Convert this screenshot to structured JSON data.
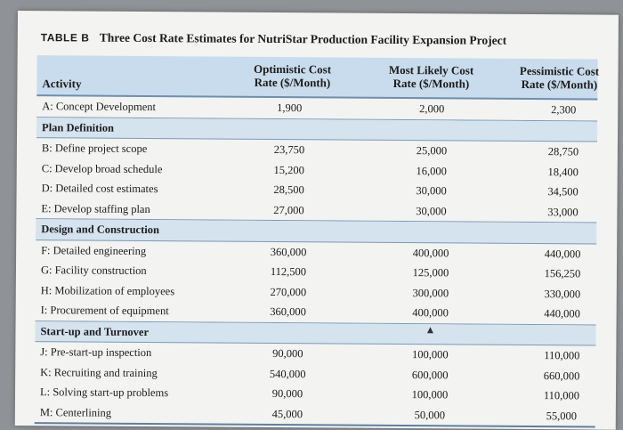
{
  "caption": {
    "label": "TABLE B",
    "title": "Three Cost Rate Estimates for NutriStar Production Facility Expansion Project"
  },
  "header": {
    "activity": "Activity",
    "optimistic": "Optimistic Cost\nRate ($/Month)",
    "most_likely": "Most Likely Cost\nRate ($/Month)",
    "pessimistic": "Pessimistic Cost\nRate ($/Month)"
  },
  "rows": [
    {
      "activity": "A: Concept Development",
      "opt": "1,900",
      "ml": "2,000",
      "pes": "2,300"
    },
    {
      "activity": "Plan Definition",
      "opt": "",
      "ml": "",
      "pes": ""
    },
    {
      "activity": "B: Define project scope",
      "opt": "23,750",
      "ml": "25,000",
      "pes": "28,750"
    },
    {
      "activity": "C: Develop broad schedule",
      "opt": "15,200",
      "ml": "16,000",
      "pes": "18,400"
    },
    {
      "activity": "D: Detailed cost estimates",
      "opt": "28,500",
      "ml": "30,000",
      "pes": "34,500"
    },
    {
      "activity": "E: Develop staffing plan",
      "opt": "27,000",
      "ml": "30,000",
      "pes": "33,000"
    },
    {
      "activity": "Design and Construction",
      "opt": "",
      "ml": "",
      "pes": ""
    },
    {
      "activity": "F: Detailed engineering",
      "opt": "360,000",
      "ml": "400,000",
      "pes": "440,000"
    },
    {
      "activity": "G: Facility construction",
      "opt": "112,500",
      "ml": "125,000",
      "pes": "156,250"
    },
    {
      "activity": "H: Mobilization of employees",
      "opt": "270,000",
      "ml": "300,000",
      "pes": "330,000"
    },
    {
      "activity": "I: Procurement of equipment",
      "opt": "360,000",
      "ml": "400,000",
      "pes": "440,000"
    },
    {
      "activity": "Start-up and Turnover",
      "opt": "",
      "ml": "",
      "pes": ""
    },
    {
      "activity": "J: Pre-start-up inspection",
      "opt": "90,000",
      "ml": "100,000",
      "pes": "110,000"
    },
    {
      "activity": "K: Recruiting and training",
      "opt": "540,000",
      "ml": "600,000",
      "pes": "660,000"
    },
    {
      "activity": "L: Solving start-up problems",
      "opt": "90,000",
      "ml": "100,000",
      "pes": "110,000"
    },
    {
      "activity": "M: Centerlining",
      "opt": "45,000",
      "ml": "50,000",
      "pes": "55,000"
    }
  ]
}
